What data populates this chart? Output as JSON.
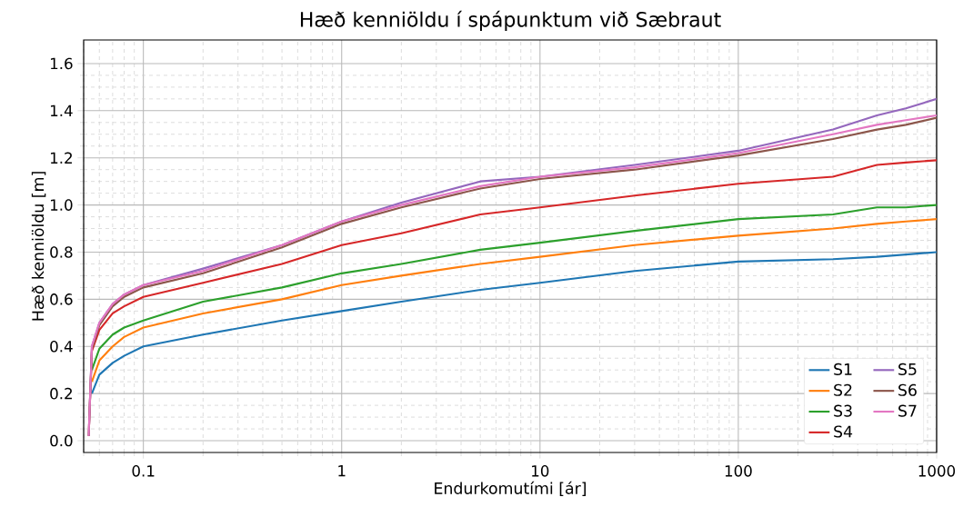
{
  "chart_data": {
    "type": "line",
    "title": "Hæð kenniöldu í spápunktum við Sæbraut",
    "xlabel": "Endurkomutími [ár]",
    "ylabel": "Hæð kenniöldu [m]",
    "log": "x",
    "grid": true,
    "legend": "bottom right",
    "marker": "none",
    "line_style": "solid",
    "xlim": [
      0.05,
      1000
    ],
    "ylim": [
      -0.05,
      1.7
    ],
    "xticks": [
      0.1,
      1,
      10,
      100,
      1000
    ],
    "yticks": [
      {
        "value": 0,
        "label": "0.0"
      },
      {
        "value": 0.2,
        "label": "0.2"
      },
      {
        "value": 0.4,
        "label": "0.4"
      },
      {
        "value": 0.6,
        "label": "0.6"
      },
      {
        "value": 0.8,
        "label": "0.8"
      },
      {
        "value": 1.0,
        "label": "1.0"
      },
      {
        "value": 1.2,
        "label": "1.2"
      },
      {
        "value": 1.4,
        "label": "1.4"
      },
      {
        "value": 1.6,
        "label": "1.6"
      }
    ],
    "x": [
      0.053,
      0.055,
      0.06,
      0.07,
      0.08,
      0.1,
      0.2,
      0.5,
      1,
      2,
      5,
      10,
      30,
      100,
      300,
      500,
      700,
      1000
    ],
    "series": [
      {
        "name": "S1",
        "color": "#1f77b4",
        "values": [
          null,
          0.2,
          0.28,
          0.33,
          0.36,
          0.4,
          0.45,
          0.51,
          0.55,
          0.59,
          0.64,
          0.67,
          0.72,
          0.76,
          0.77,
          0.78,
          0.79,
          0.8
        ]
      },
      {
        "name": "S2",
        "color": "#ff7f0e",
        "values": [
          null,
          0.25,
          0.34,
          0.4,
          0.44,
          0.48,
          0.54,
          0.6,
          0.66,
          0.7,
          0.75,
          0.78,
          0.83,
          0.87,
          0.9,
          0.92,
          0.93,
          0.94
        ]
      },
      {
        "name": "S3",
        "color": "#2ca02c",
        "values": [
          null,
          0.3,
          0.39,
          0.45,
          0.48,
          0.51,
          0.59,
          0.65,
          0.71,
          0.75,
          0.81,
          0.84,
          0.89,
          0.94,
          0.96,
          0.99,
          0.99,
          1.0
        ]
      },
      {
        "name": "S4",
        "color": "#d62728",
        "values": [
          0.02,
          0.38,
          0.47,
          0.54,
          0.57,
          0.61,
          0.67,
          0.75,
          0.83,
          0.88,
          0.96,
          0.99,
          1.04,
          1.09,
          1.12,
          1.17,
          1.18,
          1.19
        ]
      },
      {
        "name": "S5",
        "color": "#9467bd",
        "values": [
          0.02,
          0.4,
          0.5,
          0.58,
          0.62,
          0.66,
          0.73,
          0.83,
          0.93,
          1.01,
          1.1,
          1.12,
          1.17,
          1.23,
          1.32,
          1.38,
          1.41,
          1.45
        ]
      },
      {
        "name": "S6",
        "color": "#8c564b",
        "values": [
          0.02,
          0.39,
          0.49,
          0.57,
          0.61,
          0.65,
          0.71,
          0.82,
          0.92,
          0.99,
          1.07,
          1.11,
          1.15,
          1.21,
          1.28,
          1.32,
          1.34,
          1.37
        ]
      },
      {
        "name": "S7",
        "color": "#e377c2",
        "values": [
          0.02,
          0.4,
          0.5,
          0.58,
          0.62,
          0.66,
          0.72,
          0.83,
          0.93,
          1.0,
          1.08,
          1.12,
          1.16,
          1.22,
          1.3,
          1.34,
          1.36,
          1.38
        ]
      }
    ]
  }
}
